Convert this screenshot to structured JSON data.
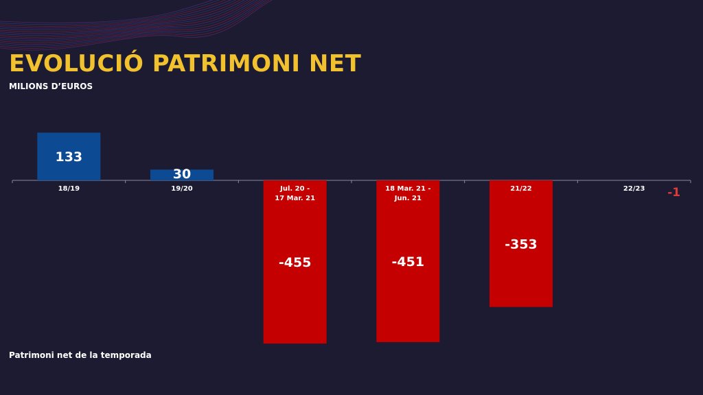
{
  "header": {
    "title": "EVOLUCIÓ PATRIMONI NET",
    "subtitle": "MILIONS D’EUROS"
  },
  "legend_note": "Patrimoni net de la temporada",
  "colors": {
    "background": "#1d1b32",
    "title": "#f2c12e",
    "positive": "#0d4a94",
    "negative": "#c40000",
    "axis": "#8a8aa0",
    "small_negative_label": "#e03a3a"
  },
  "chart_data": {
    "type": "bar",
    "categories": [
      [
        "18/19"
      ],
      [
        "19/20"
      ],
      [
        "Jul. 20 -",
        "17 Mar. 21"
      ],
      [
        "18 Mar. 21 -",
        "Jun. 21"
      ],
      [
        "21/22"
      ],
      [
        "22/23"
      ]
    ],
    "values": [
      133,
      30,
      -455,
      -451,
      -353,
      -1
    ],
    "value_labels": [
      "133",
      "30",
      "-455",
      "-451",
      "-353",
      "-1"
    ],
    "units": "Milions d’euros",
    "ylim": [
      -455,
      133
    ],
    "grid": false,
    "legend": "bottom-left"
  }
}
